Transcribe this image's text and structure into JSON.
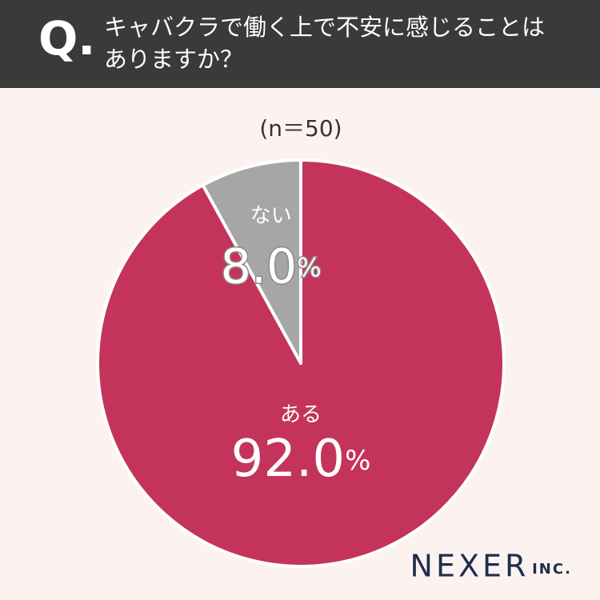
{
  "question_mark": "Q.",
  "chart_data": {
    "type": "pie",
    "title": "キャバクラで働く上で不安に感じることはありますか？",
    "subtitle": "(n＝50)",
    "categories": [
      "ある",
      "ない"
    ],
    "values": [
      92.0,
      8.0
    ],
    "value_labels": [
      "92.0%",
      "8.0%"
    ],
    "colors": [
      "#c4345a",
      "#a6a6a6"
    ]
  },
  "brand": "NEXER",
  "brand_suffix": "INC."
}
